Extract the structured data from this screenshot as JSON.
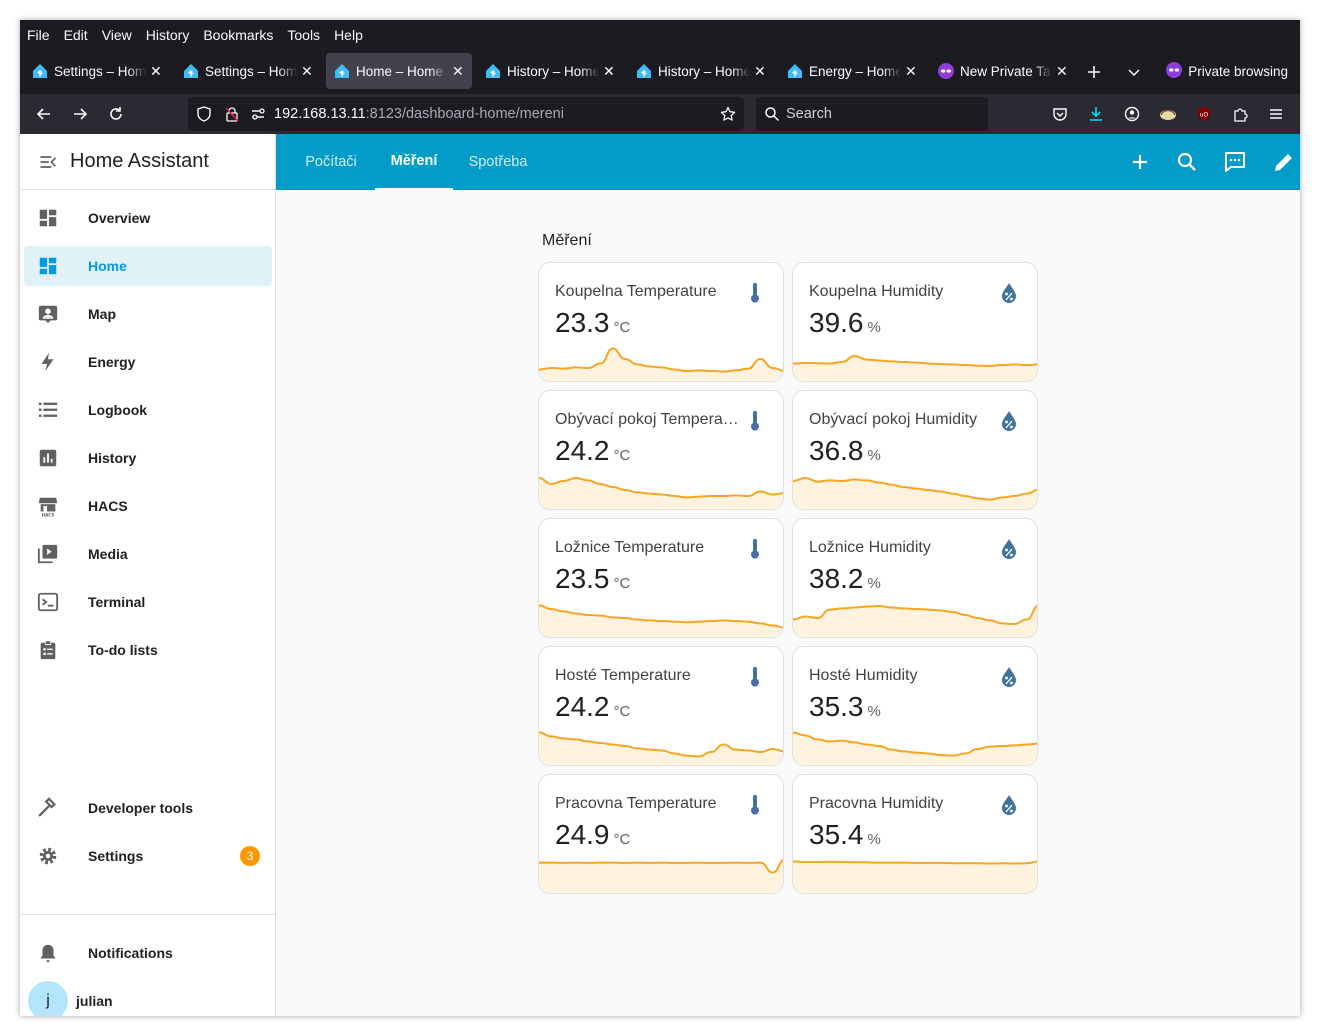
{
  "menubar": [
    "File",
    "Edit",
    "View",
    "History",
    "Bookmarks",
    "Tools",
    "Help"
  ],
  "tabs": [
    {
      "label": "Settings – Home Assistant",
      "active": false
    },
    {
      "label": "Settings – Home Assistant",
      "active": false
    },
    {
      "label": "Home – Home Assistant",
      "active": true
    },
    {
      "label": "History – Home Assistant",
      "active": false
    },
    {
      "label": "History – Home Assistant",
      "active": false
    },
    {
      "label": "Energy – Home Assistant",
      "active": false
    },
    {
      "label": "New Private Tab",
      "active": false,
      "private": true
    }
  ],
  "private_label": "Private browsing",
  "url": {
    "host": "192.168.13.11",
    "rest": ":8123/dashboard-home/mereni"
  },
  "search_placeholder": "Search",
  "sidebar": {
    "title": "Home Assistant",
    "items": [
      {
        "label": "Overview",
        "icon": "dashboard-icon"
      },
      {
        "label": "Home",
        "icon": "dashboard-icon",
        "selected": true
      },
      {
        "label": "Map",
        "icon": "map-icon"
      },
      {
        "label": "Energy",
        "icon": "lightning-icon"
      },
      {
        "label": "Logbook",
        "icon": "list-icon"
      },
      {
        "label": "History",
        "icon": "chart-icon"
      },
      {
        "label": "HACS",
        "icon": "hacs-store-icon"
      },
      {
        "label": "Media",
        "icon": "media-icon"
      },
      {
        "label": "Terminal",
        "icon": "terminal-icon"
      },
      {
        "label": "To-do lists",
        "icon": "clipboard-list-icon"
      }
    ],
    "developer_tools": "Developer tools",
    "settings": "Settings",
    "settings_badge": "3",
    "notifications": "Notifications",
    "user_initial": "j",
    "user_name": "julian"
  },
  "view_tabs": [
    "Počítači",
    "Měření",
    "Spotřeba"
  ],
  "active_view": "Měření",
  "section_title": "Měření",
  "colors": {
    "accent": "#039bc7",
    "sparkline": "#f5a623",
    "spark_fill": "#fff3e0",
    "icon": "#44739e"
  },
  "cards": [
    {
      "name": "Koupelna Temperature",
      "value": "23.3",
      "unit": "°C",
      "icon": "thermometer-icon",
      "trend": [
        0.25,
        0.3,
        0.28,
        0.32,
        0.3,
        0.45,
        0.95,
        0.6,
        0.42,
        0.35,
        0.32,
        0.25,
        0.2,
        0.22,
        0.2,
        0.18,
        0.22,
        0.28,
        0.6,
        0.3,
        0.2
      ]
    },
    {
      "name": "Koupelna Humidity",
      "value": "39.6",
      "unit": "%",
      "icon": "water-percent-icon",
      "trend": [
        0.45,
        0.47,
        0.46,
        0.45,
        0.5,
        0.7,
        0.58,
        0.55,
        0.52,
        0.5,
        0.48,
        0.45,
        0.43,
        0.42,
        0.4,
        0.38,
        0.37,
        0.4,
        0.42,
        0.4,
        0.42
      ]
    },
    {
      "name": "Obývací pokoj Temperature",
      "value": "24.2",
      "unit": "°C",
      "icon": "thermometer-icon",
      "trend": [
        0.9,
        0.7,
        0.8,
        0.9,
        0.82,
        0.7,
        0.6,
        0.5,
        0.42,
        0.38,
        0.35,
        0.3,
        0.25,
        0.28,
        0.3,
        0.3,
        0.32,
        0.3,
        0.45,
        0.35,
        0.4
      ]
    },
    {
      "name": "Obývací pokoj Humidity",
      "value": "36.8",
      "unit": "%",
      "icon": "water-percent-icon",
      "trend": [
        0.8,
        0.9,
        0.78,
        0.82,
        0.8,
        0.85,
        0.82,
        0.75,
        0.68,
        0.6,
        0.55,
        0.5,
        0.45,
        0.38,
        0.3,
        0.22,
        0.18,
        0.25,
        0.3,
        0.38,
        0.52
      ]
    },
    {
      "name": "Ložnice Temperature",
      "value": "23.5",
      "unit": "°C",
      "icon": "thermometer-icon",
      "trend": [
        0.92,
        0.8,
        0.72,
        0.65,
        0.6,
        0.58,
        0.52,
        0.5,
        0.45,
        0.42,
        0.4,
        0.38,
        0.36,
        0.38,
        0.4,
        0.42,
        0.4,
        0.38,
        0.32,
        0.25,
        0.18
      ]
    },
    {
      "name": "Ložnice Humidity",
      "value": "38.2",
      "unit": "%",
      "icon": "water-percent-icon",
      "trend": [
        0.45,
        0.55,
        0.5,
        0.78,
        0.82,
        0.85,
        0.88,
        0.9,
        0.85,
        0.82,
        0.8,
        0.78,
        0.75,
        0.7,
        0.6,
        0.5,
        0.42,
        0.32,
        0.3,
        0.45,
        0.92
      ]
    },
    {
      "name": "Hosté Temperature",
      "value": "24.2",
      "unit": "°C",
      "icon": "thermometer-icon",
      "trend": [
        0.95,
        0.82,
        0.75,
        0.72,
        0.65,
        0.6,
        0.55,
        0.5,
        0.42,
        0.38,
        0.35,
        0.25,
        0.18,
        0.15,
        0.3,
        0.55,
        0.38,
        0.35,
        0.3,
        0.4,
        0.32
      ]
    },
    {
      "name": "Hosté Humidity",
      "value": "35.3",
      "unit": "%",
      "icon": "water-percent-icon",
      "trend": [
        0.95,
        0.85,
        0.72,
        0.65,
        0.68,
        0.62,
        0.55,
        0.5,
        0.38,
        0.32,
        0.28,
        0.25,
        0.2,
        0.18,
        0.25,
        0.4,
        0.48,
        0.5,
        0.52,
        0.55,
        0.58
      ]
    },
    {
      "name": "Pracovna Temperature",
      "value": "24.9",
      "unit": "°C",
      "icon": "thermometer-icon",
      "trend": [
        0.88,
        0.88,
        0.87,
        0.88,
        0.87,
        0.88,
        0.88,
        0.87,
        0.88,
        0.87,
        0.88,
        0.87,
        0.87,
        0.88,
        0.87,
        0.87,
        0.88,
        0.87,
        0.88,
        0.55,
        0.98
      ]
    },
    {
      "name": "Pracovna Humidity",
      "value": "35.4",
      "unit": "%",
      "icon": "water-percent-icon",
      "trend": [
        0.92,
        0.9,
        0.9,
        0.91,
        0.9,
        0.89,
        0.89,
        0.88,
        0.88,
        0.88,
        0.87,
        0.87,
        0.87,
        0.86,
        0.86,
        0.86,
        0.85,
        0.86,
        0.85,
        0.86,
        0.92
      ]
    }
  ]
}
